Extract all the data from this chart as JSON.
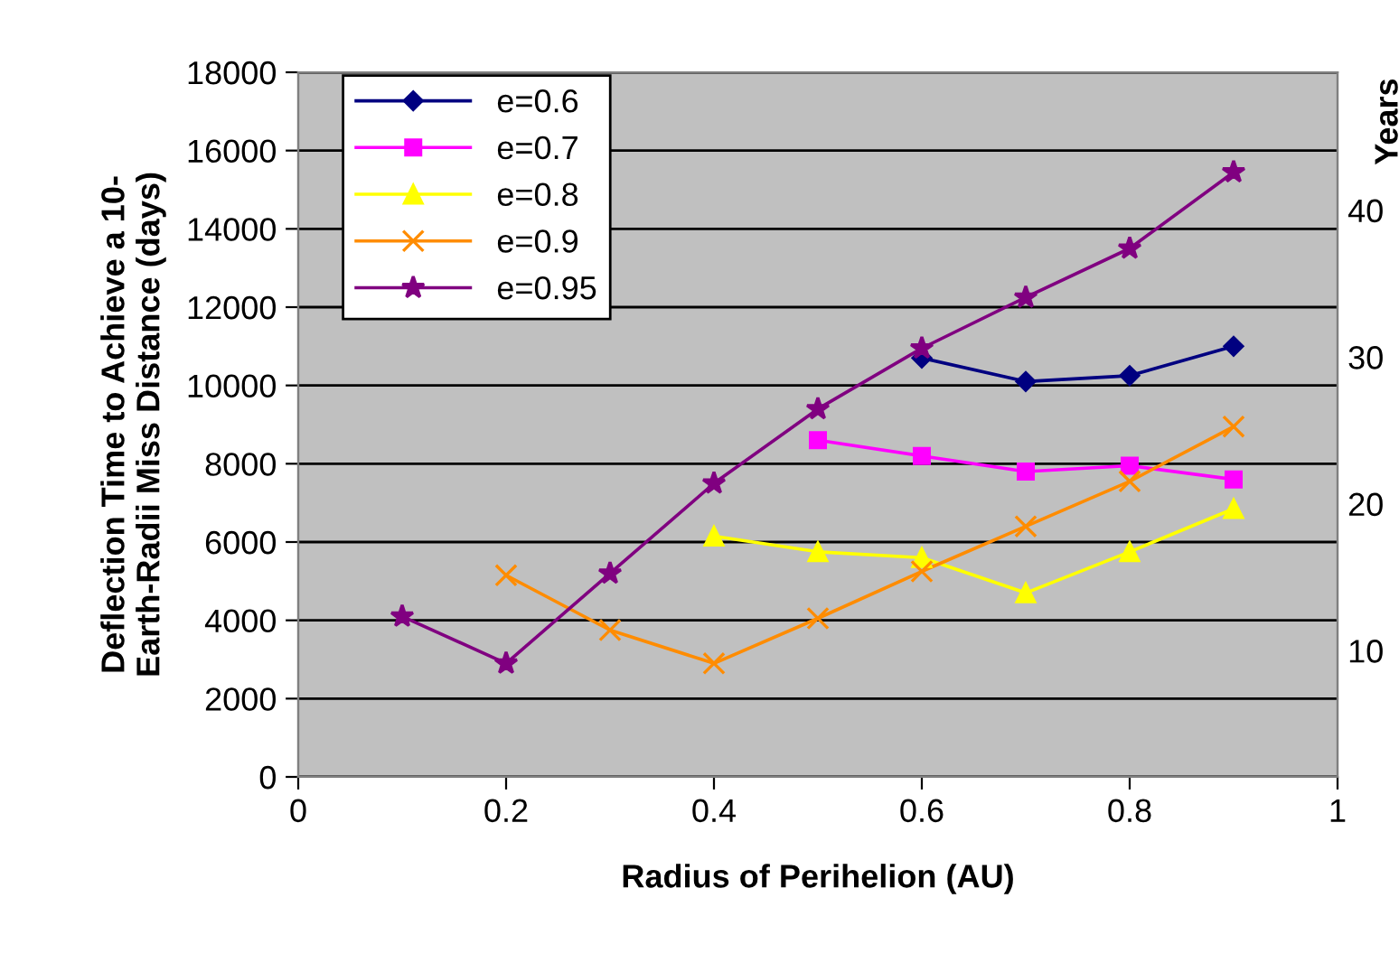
{
  "chart_data": {
    "type": "line",
    "xlabel": "Radius of Perihelion (AU)",
    "ylabel": "Deflection Time to Achieve a 10-\nEarth-Radii Miss Distance (days)",
    "y2label": "Years",
    "xlim": [
      0,
      1
    ],
    "xticks": [
      0,
      0.2,
      0.4,
      0.6,
      0.8,
      1
    ],
    "ylim": [
      0,
      18000
    ],
    "yticks": [
      0,
      2000,
      4000,
      6000,
      8000,
      10000,
      12000,
      14000,
      16000,
      18000
    ],
    "y2lim": [
      1.4,
      49.4
    ],
    "y2ticks": [
      10,
      20,
      30,
      40
    ],
    "grid": "y",
    "legend": "top left",
    "line_style": "solid",
    "series": [
      {
        "name": "e=0.6",
        "color": "#000080",
        "marker": "diamond",
        "x": [
          0.6,
          0.7,
          0.8,
          0.9
        ],
        "values": [
          10700,
          10100,
          10250,
          11000
        ]
      },
      {
        "name": "e=0.7",
        "color": "#ff00ff",
        "marker": "square",
        "x": [
          0.5,
          0.6,
          0.7,
          0.8,
          0.9
        ],
        "values": [
          8600,
          8200,
          7800,
          7950,
          7600
        ]
      },
      {
        "name": "e=0.8",
        "color": "#ffff00",
        "marker": "triangle",
        "x": [
          0.4,
          0.5,
          0.6,
          0.7,
          0.8,
          0.9
        ],
        "values": [
          6150,
          5750,
          5600,
          4700,
          5750,
          6850
        ]
      },
      {
        "name": "e=0.9",
        "color": "#ff8c00",
        "marker": "cross",
        "x": [
          0.2,
          0.3,
          0.4,
          0.5,
          0.6,
          0.7,
          0.8,
          0.9
        ],
        "values": [
          5150,
          3750,
          2900,
          4050,
          5250,
          6400,
          7550,
          8950
        ]
      },
      {
        "name": "e=0.95",
        "color": "#800080",
        "marker": "star",
        "x": [
          0.1,
          0.2,
          0.3,
          0.4,
          0.5,
          0.6,
          0.7,
          0.8,
          0.9
        ],
        "values": [
          4100,
          2900,
          5200,
          7500,
          9400,
          10950,
          12250,
          13500,
          15450
        ]
      }
    ]
  }
}
